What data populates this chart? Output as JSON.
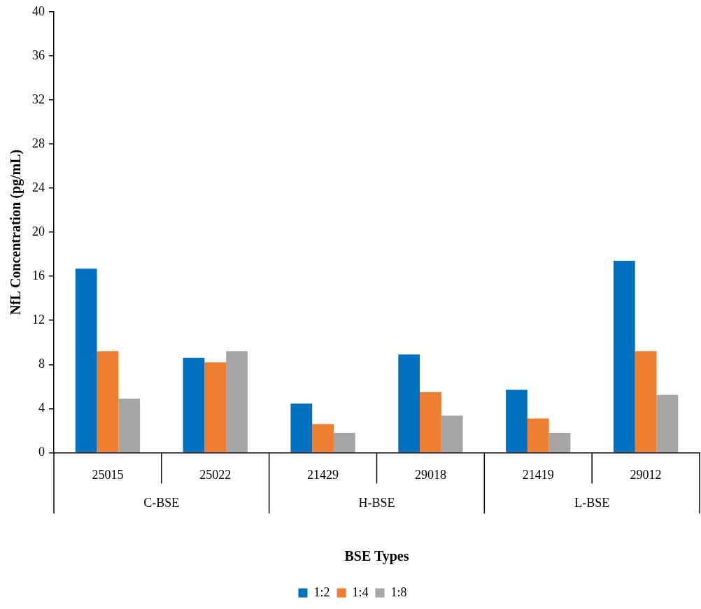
{
  "chart_data": {
    "type": "bar",
    "xlabel": "BSE Types",
    "ylabel": "NfL Concentration (pg/mL)",
    "categories": [
      "25015",
      "25022",
      "21429",
      "29018",
      "21419",
      "29012"
    ],
    "annotations": [
      "C-BSE",
      "H-BSE",
      "L-BSE"
    ],
    "series": [
      {
        "name": "1:2",
        "color": "#0070c0",
        "values": [
          16.7,
          8.6,
          4.45,
          8.9,
          5.7,
          17.4
        ]
      },
      {
        "name": "1:4",
        "color": "#ed7d31",
        "values": [
          9.2,
          8.2,
          2.6,
          5.5,
          3.1,
          9.2
        ]
      },
      {
        "name": "1:8",
        "color": "#a5a5a5",
        "values": [
          4.9,
          9.2,
          1.8,
          3.35,
          1.8,
          5.25
        ]
      }
    ],
    "ylim": [
      0,
      40
    ],
    "yticks": [
      0,
      4,
      8,
      12,
      16,
      20,
      24,
      28,
      32,
      36,
      40
    ],
    "grid": false,
    "legend": "bottom"
  }
}
